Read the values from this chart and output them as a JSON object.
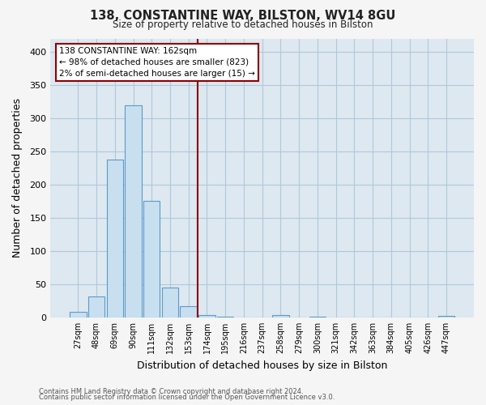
{
  "title": "138, CONSTANTINE WAY, BILSTON, WV14 8GU",
  "subtitle": "Size of property relative to detached houses in Bilston",
  "xlabel": "Distribution of detached houses by size in Bilston",
  "ylabel": "Number of detached properties",
  "bin_labels": [
    "27sqm",
    "48sqm",
    "69sqm",
    "90sqm",
    "111sqm",
    "132sqm",
    "153sqm",
    "174sqm",
    "195sqm",
    "216sqm",
    "237sqm",
    "258sqm",
    "279sqm",
    "300sqm",
    "321sqm",
    "342sqm",
    "363sqm",
    "384sqm",
    "405sqm",
    "426sqm",
    "447sqm"
  ],
  "bar_heights": [
    8,
    32,
    238,
    320,
    176,
    45,
    17,
    4,
    1,
    0,
    0,
    3,
    0,
    1,
    0,
    0,
    0,
    0,
    0,
    0,
    2
  ],
  "bar_color": "#c8dff0",
  "bar_edge_color": "#5b9bc8",
  "ylim": [
    0,
    420
  ],
  "yticks": [
    0,
    50,
    100,
    150,
    200,
    250,
    300,
    350,
    400
  ],
  "vline_x": 6.5,
  "vline_color": "#8b0000",
  "annotation_title": "138 CONSTANTINE WAY: 162sqm",
  "annotation_line1": "← 98% of detached houses are smaller (823)",
  "annotation_line2": "2% of semi-detached houses are larger (15) →",
  "footer1": "Contains HM Land Registry data © Crown copyright and database right 2024.",
  "footer2": "Contains public sector information licensed under the Open Government Licence v3.0.",
  "background_color": "#f5f5f5",
  "plot_bg_color": "#dde8f0",
  "grid_color": "#b0c8dc"
}
